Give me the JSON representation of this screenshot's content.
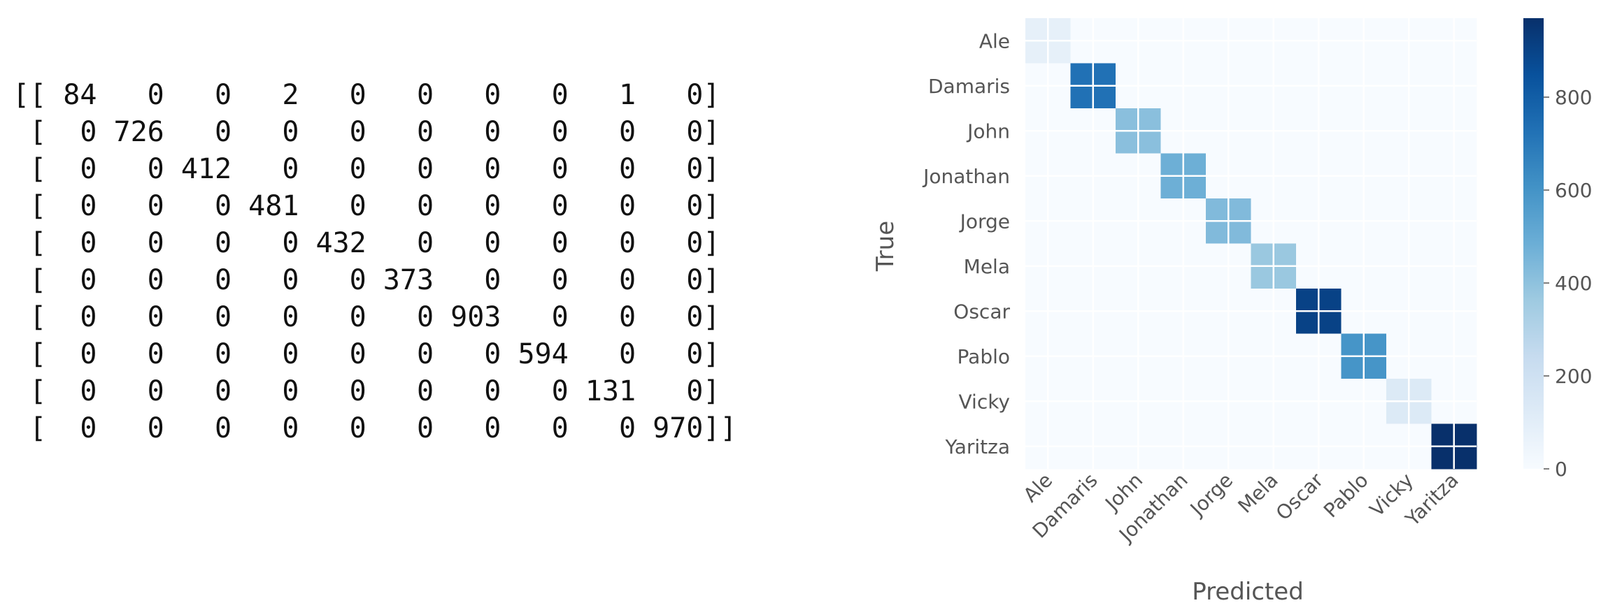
{
  "matrix_text": "[[ 84   0   0   2   0   0   0   0   1   0]\n [  0 726   0   0   0   0   0   0   0   0]\n [  0   0 412   0   0   0   0   0   0   0]\n [  0   0   0 481   0   0   0   0   0   0]\n [  0   0   0   0 432   0   0   0   0   0]\n [  0   0   0   0   0 373   0   0   0   0]\n [  0   0   0   0   0   0 903   0   0   0]\n [  0   0   0   0   0   0   0 594   0   0]\n [  0   0   0   0   0   0   0   0 131   0]\n [  0   0   0   0   0   0   0   0   0 970]]",
  "chart_data": {
    "type": "heatmap",
    "title": "",
    "xlabel": "Predicted",
    "ylabel": "True",
    "x_categories": [
      "Ale",
      "Damaris",
      "John",
      "Jonathan",
      "Jorge",
      "Mela",
      "Oscar",
      "Pablo",
      "Vicky",
      "Yaritza"
    ],
    "y_categories": [
      "Ale",
      "Damaris",
      "John",
      "Jonathan",
      "Jorge",
      "Mela",
      "Oscar",
      "Pablo",
      "Vicky",
      "Yaritza"
    ],
    "values": [
      [
        84,
        0,
        0,
        2,
        0,
        0,
        0,
        0,
        1,
        0
      ],
      [
        0,
        726,
        0,
        0,
        0,
        0,
        0,
        0,
        0,
        0
      ],
      [
        0,
        0,
        412,
        0,
        0,
        0,
        0,
        0,
        0,
        0
      ],
      [
        0,
        0,
        0,
        481,
        0,
        0,
        0,
        0,
        0,
        0
      ],
      [
        0,
        0,
        0,
        0,
        432,
        0,
        0,
        0,
        0,
        0
      ],
      [
        0,
        0,
        0,
        0,
        0,
        373,
        0,
        0,
        0,
        0
      ],
      [
        0,
        0,
        0,
        0,
        0,
        0,
        903,
        0,
        0,
        0
      ],
      [
        0,
        0,
        0,
        0,
        0,
        0,
        0,
        594,
        0,
        0
      ],
      [
        0,
        0,
        0,
        0,
        0,
        0,
        0,
        0,
        131,
        0
      ],
      [
        0,
        0,
        0,
        0,
        0,
        0,
        0,
        0,
        0,
        970
      ]
    ],
    "colormap": "Blues",
    "colorbar": {
      "range": [
        0,
        970
      ],
      "ticks": [
        0,
        200,
        400,
        600,
        800
      ],
      "tick_labels": [
        "0",
        "200",
        "400",
        "600",
        "800"
      ]
    },
    "grid": true
  }
}
